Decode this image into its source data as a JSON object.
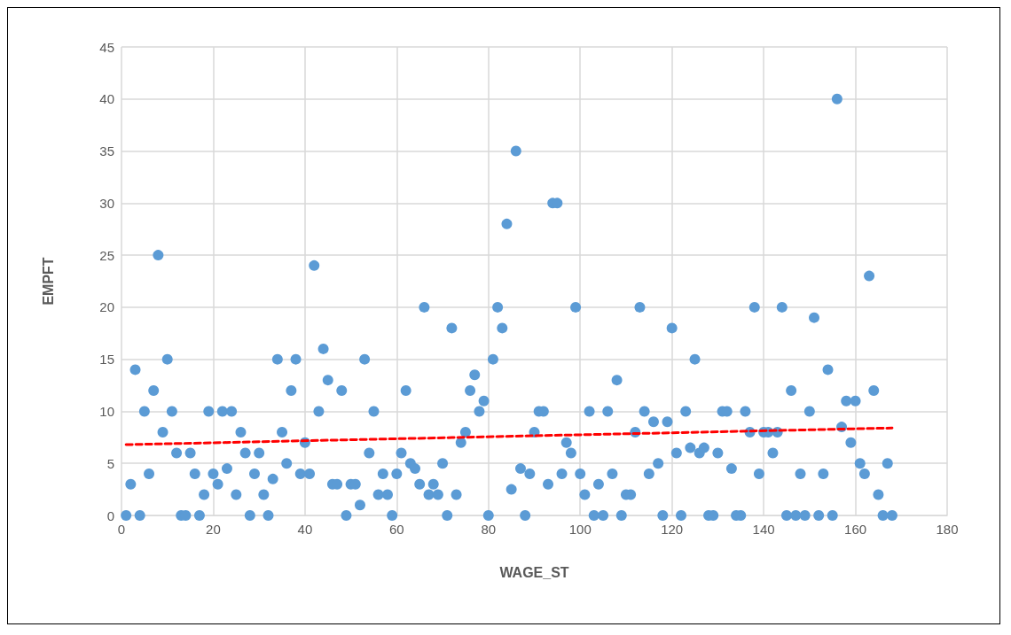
{
  "chart_data": {
    "type": "scatter",
    "xlabel": "WAGE_ST",
    "ylabel": "EMPFT",
    "xlim": [
      0,
      180
    ],
    "xticks": [
      0,
      20,
      40,
      60,
      80,
      100,
      120,
      140,
      160,
      180
    ],
    "ylim": [
      0,
      45
    ],
    "yticks": [
      0,
      5,
      10,
      15,
      20,
      25,
      30,
      35,
      40,
      45
    ],
    "grid": true,
    "marker": "circle",
    "x": [
      1,
      2,
      3,
      4,
      5,
      6,
      7,
      8,
      9,
      10,
      11,
      12,
      13,
      14,
      15,
      16,
      17,
      18,
      19,
      20,
      21,
      22,
      23,
      24,
      25,
      26,
      27,
      28,
      29,
      30,
      31,
      32,
      33,
      34,
      35,
      36,
      37,
      38,
      39,
      40,
      41,
      42,
      43,
      44,
      45,
      46,
      47,
      48,
      49,
      50,
      51,
      52,
      53,
      54,
      55,
      56,
      57,
      58,
      59,
      60,
      61,
      62,
      63,
      64,
      65,
      66,
      67,
      68,
      69,
      70,
      71,
      72,
      73,
      74,
      75,
      76,
      77,
      78,
      79,
      80,
      81,
      82,
      83,
      84,
      85,
      86,
      87,
      88,
      89,
      90,
      91,
      92,
      93,
      94,
      95,
      96,
      97,
      98,
      99,
      100,
      101,
      102,
      103,
      104,
      105,
      106,
      107,
      108,
      109,
      110,
      111,
      112,
      113,
      114,
      115,
      116,
      117,
      118,
      119,
      120,
      121,
      122,
      123,
      124,
      125,
      126,
      127,
      128,
      129,
      130,
      131,
      132,
      133,
      134,
      135,
      136,
      137,
      138,
      139,
      140,
      141,
      142,
      143,
      144,
      145,
      146,
      147,
      148,
      149,
      150,
      151,
      152,
      153,
      154,
      155,
      156,
      157,
      158,
      159,
      160,
      161,
      162,
      163,
      164,
      165,
      166,
      167,
      168
    ],
    "series": [
      {
        "color": "#5b9bd5",
        "values": [
          0,
          3,
          14,
          0,
          10,
          4,
          12,
          25,
          8,
          15,
          10,
          6,
          0,
          0,
          6,
          4,
          0,
          2,
          10,
          4,
          3,
          10,
          4.5,
          10,
          2,
          8,
          6,
          0,
          4,
          6,
          2,
          0,
          3.5,
          15,
          8,
          5,
          12,
          15,
          4,
          7,
          4,
          24,
          10,
          16,
          13,
          3,
          3,
          12,
          0,
          3,
          3,
          1,
          15,
          6,
          10,
          2,
          4,
          2,
          0,
          4,
          6,
          12,
          5,
          4.5,
          3,
          20,
          2,
          3,
          2,
          5,
          0,
          18,
          2,
          7,
          8,
          12,
          13.5,
          10,
          11,
          0,
          15,
          20,
          18,
          28,
          2.5,
          35,
          4.5,
          0,
          4,
          8,
          10,
          10,
          3,
          30,
          30,
          4,
          7,
          6,
          20,
          4,
          2,
          10,
          0,
          3,
          0,
          10,
          4,
          13,
          0,
          2,
          2,
          8,
          20,
          10,
          4,
          9,
          5,
          0,
          9,
          18,
          6,
          0,
          10,
          6.5,
          15,
          6,
          6.5,
          0,
          0,
          6,
          10,
          10,
          4.5,
          0,
          0,
          10,
          8,
          20,
          4,
          8,
          8,
          6,
          8,
          20,
          0,
          12,
          0,
          4,
          0,
          10,
          19,
          0,
          4,
          14,
          0,
          40,
          8.5,
          11,
          7,
          11,
          5,
          4,
          23,
          12,
          2,
          0,
          5,
          0
        ]
      },
      {
        "type": "line",
        "color": "#ff0000",
        "line_style": "dashed",
        "marker": "none",
        "x": [
          1,
          168
        ],
        "values": [
          6.8,
          8.4
        ]
      }
    ]
  }
}
